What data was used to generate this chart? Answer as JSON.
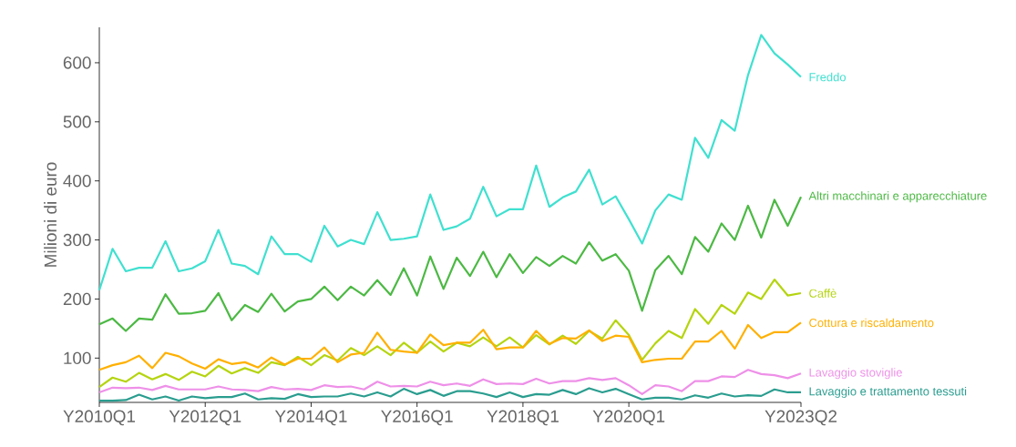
{
  "chart_data": {
    "type": "line",
    "ylabel": "Milioni di euro",
    "categories": [
      "Y2010Q1",
      null,
      null,
      null,
      null,
      null,
      null,
      null,
      "Y2012Q1",
      null,
      null,
      null,
      null,
      null,
      null,
      null,
      "Y2014Q1",
      null,
      null,
      null,
      null,
      null,
      null,
      null,
      "Y2016Q1",
      null,
      null,
      null,
      null,
      null,
      null,
      null,
      "Y2018Q1",
      null,
      null,
      null,
      null,
      null,
      null,
      null,
      "Y2020Q1",
      null,
      null,
      null,
      null,
      null,
      null,
      null,
      null,
      null,
      null,
      null,
      null,
      "Y2023Q2"
    ],
    "ylim": [
      25,
      660
    ],
    "yticks": [
      100,
      200,
      300,
      400,
      500,
      600
    ],
    "series": [
      {
        "name": "Freddo",
        "color": "#40e0d0",
        "values": [
          215,
          285,
          247,
          253,
          253,
          298,
          247,
          252,
          264,
          317,
          260,
          256,
          242,
          306,
          276,
          276,
          263,
          324,
          289,
          300,
          293,
          347,
          300,
          302,
          306,
          377,
          317,
          323,
          336,
          390,
          340,
          352,
          352,
          426,
          356,
          372,
          382,
          419,
          360,
          374,
          335,
          294,
          350,
          377,
          368,
          473,
          439,
          503,
          485,
          579,
          647,
          616,
          597,
          576
        ]
      },
      {
        "name": "Altri macchinari e apparecchiature",
        "color": "#4cb944",
        "values": [
          157,
          167,
          146,
          167,
          165,
          208,
          175,
          176,
          180,
          210,
          164,
          190,
          178,
          209,
          179,
          196,
          200,
          221,
          198,
          221,
          206,
          232,
          207,
          252,
          206,
          272,
          217,
          270,
          239,
          280,
          237,
          276,
          244,
          271,
          256,
          273,
          260,
          296,
          265,
          276,
          248,
          180,
          249,
          273,
          242,
          305,
          280,
          328,
          300,
          358,
          304,
          368,
          324,
          373
        ]
      },
      {
        "name": "Caffè",
        "color": "#b5d40f",
        "values": [
          51,
          67,
          60,
          75,
          64,
          73,
          63,
          77,
          69,
          87,
          74,
          83,
          75,
          93,
          88,
          102,
          88,
          105,
          96,
          117,
          105,
          120,
          105,
          126,
          109,
          128,
          111,
          126,
          120,
          135,
          120,
          135,
          118,
          139,
          123,
          138,
          124,
          146,
          133,
          164,
          139,
          97,
          125,
          146,
          134,
          183,
          158,
          190,
          175,
          211,
          200,
          233,
          206,
          210
        ]
      },
      {
        "name": "Cottura e riscaldamento",
        "color": "#ffb000",
        "values": [
          80,
          88,
          93,
          104,
          83,
          109,
          103,
          91,
          82,
          98,
          90,
          93,
          84,
          101,
          89,
          99,
          99,
          118,
          93,
          106,
          109,
          143,
          114,
          111,
          109,
          140,
          122,
          126,
          126,
          148,
          115,
          118,
          118,
          146,
          124,
          134,
          133,
          147,
          129,
          138,
          136,
          93,
          97,
          99,
          99,
          128,
          128,
          146,
          116,
          156,
          134,
          144,
          144,
          160
        ]
      },
      {
        "name": "Lavaggio stoviglie",
        "color": "#ee90e8",
        "values": [
          42,
          50,
          49,
          50,
          46,
          53,
          47,
          47,
          47,
          52,
          47,
          46,
          44,
          51,
          47,
          48,
          46,
          54,
          51,
          52,
          47,
          60,
          52,
          53,
          52,
          60,
          54,
          57,
          53,
          64,
          56,
          57,
          56,
          65,
          57,
          61,
          61,
          66,
          63,
          66,
          54,
          39,
          54,
          52,
          44,
          61,
          61,
          69,
          68,
          80,
          73,
          71,
          66,
          74
        ]
      },
      {
        "name": "Lavaggio e trattamento tessuti",
        "color": "#2a9d8f",
        "values": [
          28,
          28,
          29,
          38,
          30,
          35,
          28,
          35,
          32,
          34,
          34,
          40,
          30,
          32,
          31,
          39,
          34,
          35,
          35,
          40,
          35,
          42,
          35,
          48,
          39,
          46,
          36,
          44,
          44,
          40,
          34,
          42,
          34,
          39,
          38,
          46,
          39,
          49,
          42,
          48,
          39,
          30,
          33,
          33,
          30,
          37,
          33,
          40,
          35,
          37,
          36,
          47,
          42,
          42
        ]
      }
    ]
  }
}
